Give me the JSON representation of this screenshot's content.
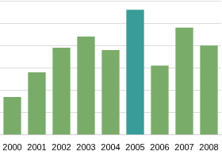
{
  "chart_data": {
    "type": "bar",
    "categories": [
      "2000",
      "2001",
      "2002",
      "2003",
      "2004",
      "2005",
      "2006",
      "2007",
      "2008"
    ],
    "values": [
      1.7,
      2.8,
      3.9,
      4.4,
      3.8,
      5.6,
      3.1,
      4.8,
      4.0
    ],
    "colors": [
      "#7aac69",
      "#7aac69",
      "#7aac69",
      "#7aac69",
      "#7aac69",
      "#389c98",
      "#7aac69",
      "#7aac69",
      "#7aac69"
    ],
    "ylim": [
      0,
      6
    ],
    "yticks": [
      0,
      1,
      2,
      3,
      4,
      5,
      6
    ],
    "grid": true,
    "tick_labels": "x"
  }
}
